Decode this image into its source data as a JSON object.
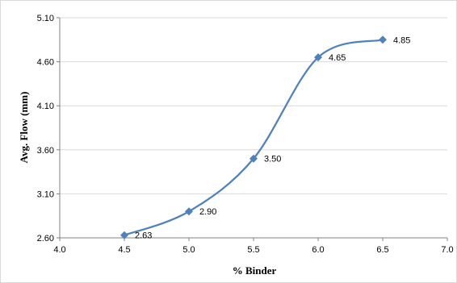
{
  "chart_data": {
    "type": "line",
    "title": "",
    "xlabel": "% Binder",
    "ylabel": "Avg. Flow (mm)",
    "xlim": [
      4.0,
      7.0
    ],
    "ylim": [
      2.6,
      5.1
    ],
    "xticks": [
      "4.0",
      "4.5",
      "5.0",
      "5.5",
      "6.0",
      "6.5",
      "7.0"
    ],
    "yticks": [
      "2.60",
      "3.10",
      "3.60",
      "4.10",
      "4.60",
      "5.10"
    ],
    "grid": "horizontal",
    "smooth": true,
    "series": [
      {
        "x": [
          4.5,
          5.0,
          5.5,
          6.0,
          6.5
        ],
        "y": [
          2.63,
          2.9,
          3.5,
          4.65,
          4.85
        ],
        "labels": [
          "2.63",
          "2.90",
          "3.50",
          "4.65",
          "4.85"
        ],
        "marker": "diamond",
        "color": "#4f81bd"
      }
    ]
  }
}
